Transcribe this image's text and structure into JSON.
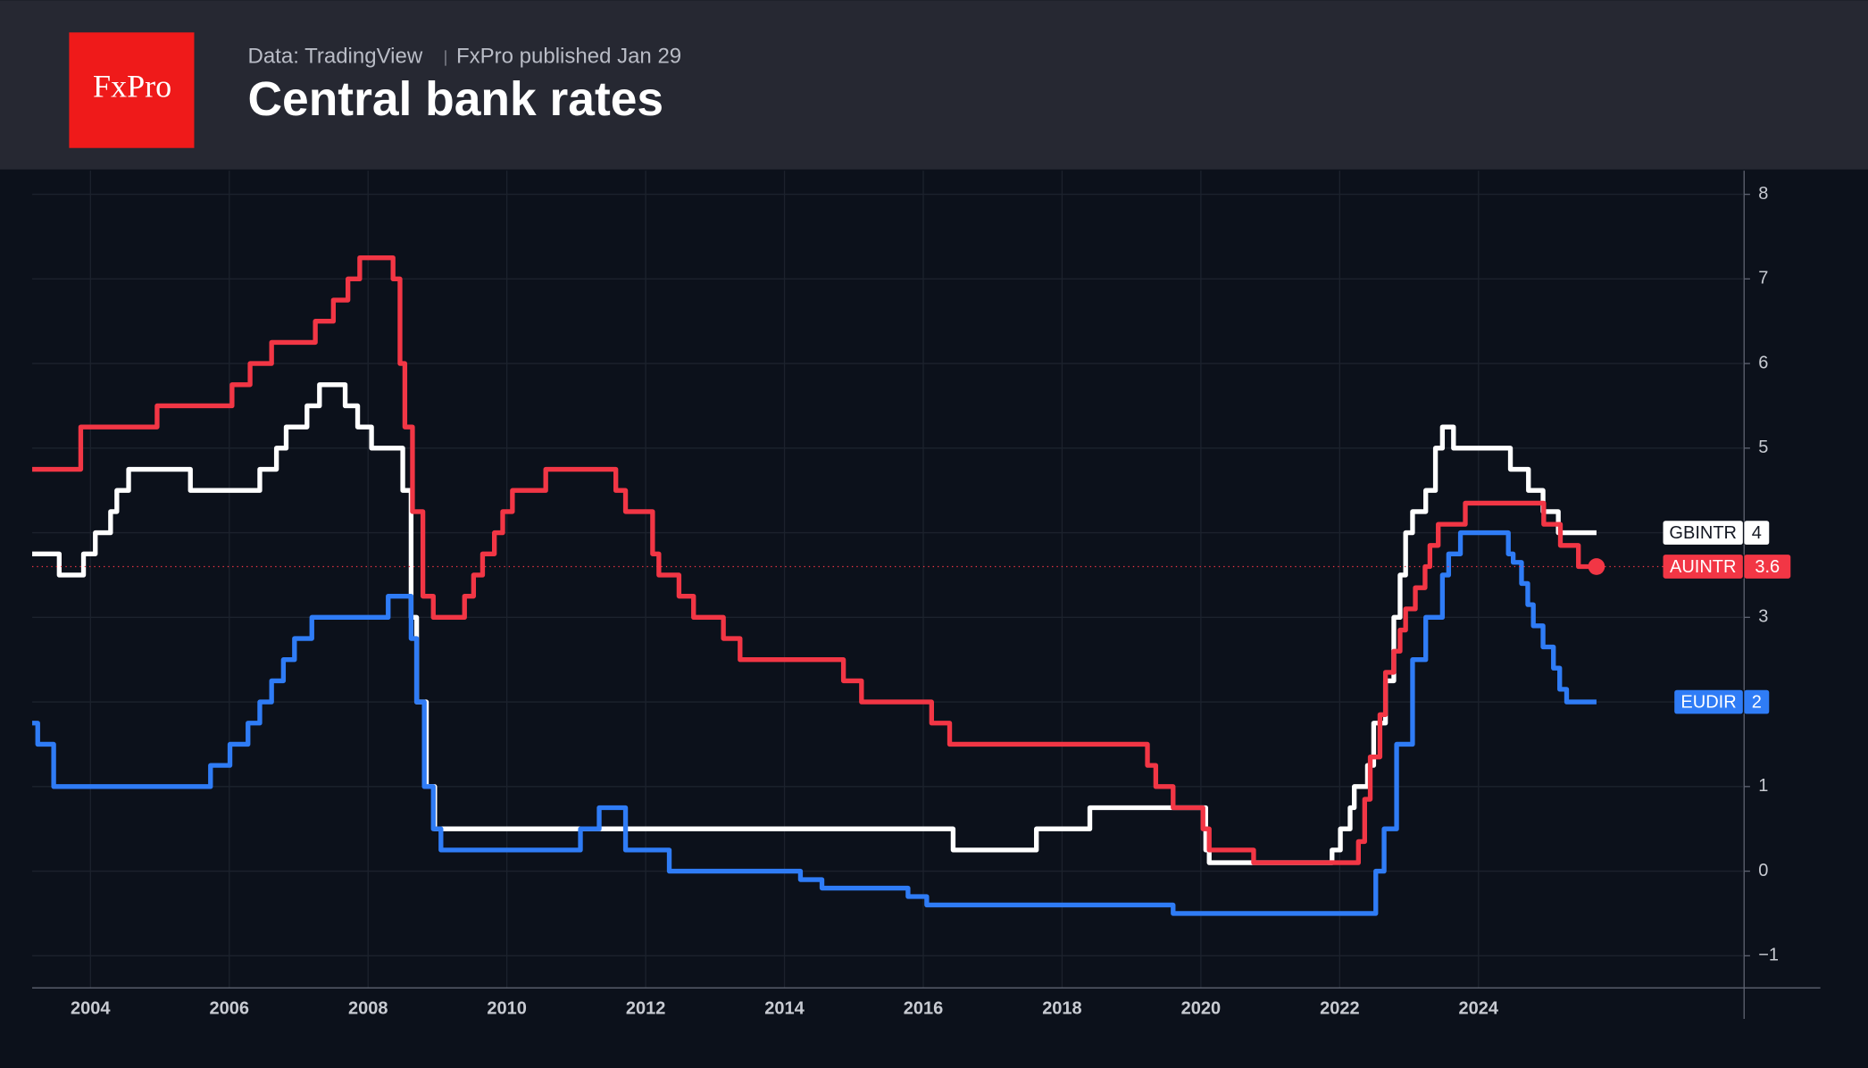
{
  "chart_data": {
    "type": "line",
    "brand": "FxPro",
    "source": "Data: TradingView",
    "publisher": "FxPro published Jan 29",
    "title": "Central bank rates",
    "step": "after",
    "grid": true,
    "xlim": [
      2003.16,
      2027.81
    ],
    "xticks": [
      2004,
      2006,
      2008,
      2010,
      2012,
      2014,
      2016,
      2018,
      2020,
      2022,
      2024
    ],
    "ylim": [
      -1.38,
      8.28
    ],
    "yticks": [
      8,
      7,
      6,
      5,
      4,
      3,
      2,
      1,
      0,
      {
        "value": -1,
        "label": "−1"
      }
    ],
    "reference_series": 1,
    "series": [
      {
        "name": "GBINTR",
        "color": "#ffffff",
        "label_text_color": "#131722",
        "x": [
          2003.16,
          2003.55,
          2003.9,
          2004.07,
          2004.29,
          2004.38,
          2004.55,
          2005.44,
          2006.44,
          2006.68,
          2006.82,
          2007.12,
          2007.3,
          2007.67,
          2007.85,
          2008.05,
          2008.5,
          2008.62,
          2008.7,
          2008.84,
          2008.96,
          2016.43,
          2017.63,
          2018.4,
          2020.07,
          2020.12,
          2021.89,
          2022.01,
          2022.15,
          2022.21,
          2022.4,
          2022.49,
          2022.66,
          2022.78,
          2022.87,
          2022.95,
          2023.05,
          2023.24,
          2023.38,
          2023.48,
          2023.64,
          2024.46,
          2024.72,
          2024.93,
          2025.15,
          2025.41,
          2025.7
        ],
        "values": [
          3.75,
          3.5,
          3.75,
          4,
          4.25,
          4.5,
          4.75,
          4.5,
          4.75,
          5,
          5.25,
          5.5,
          5.75,
          5.5,
          5.25,
          5,
          4.5,
          3,
          2,
          1,
          0.5,
          0.25,
          0.5,
          0.75,
          0.25,
          0.1,
          0.25,
          0.5,
          0.75,
          1,
          1.25,
          1.75,
          2.25,
          3,
          3.5,
          4,
          4.25,
          4.5,
          5,
          5.25,
          5,
          4.75,
          4.5,
          4.25,
          4,
          4,
          4
        ]
      },
      {
        "name": "AUINTR",
        "color": "#f23645",
        "label_text_color": "#ffffff",
        "x": [
          2003.16,
          2003.86,
          2004.96,
          2006.04,
          2006.3,
          2006.61,
          2007.24,
          2007.5,
          2007.71,
          2007.88,
          2008.36,
          2008.46,
          2008.53,
          2008.64,
          2008.79,
          2008.94,
          2009.39,
          2009.52,
          2009.65,
          2009.82,
          2009.94,
          2010.08,
          2010.56,
          2011.57,
          2011.71,
          2012.1,
          2012.19,
          2012.48,
          2012.69,
          2013.12,
          2013.36,
          2014.85,
          2015.11,
          2016.12,
          2016.38,
          2019.23,
          2019.35,
          2019.6,
          2020.03,
          2020.12,
          2020.76,
          2022.27,
          2022.36,
          2022.44,
          2022.58,
          2022.66,
          2022.78,
          2022.87,
          2022.95,
          2023.09,
          2023.23,
          2023.3,
          2023.42,
          2023.81,
          2024.94,
          2025.18,
          2025.44,
          2025.7
        ],
        "values": [
          4.75,
          5.25,
          5.5,
          5.75,
          6,
          6.25,
          6.5,
          6.75,
          7,
          7.25,
          7,
          6,
          5.25,
          4.25,
          3.25,
          3,
          3.25,
          3.5,
          3.75,
          4,
          4.25,
          4.5,
          4.75,
          4.5,
          4.25,
          3.75,
          3.5,
          3.25,
          3,
          2.75,
          2.5,
          2.25,
          2,
          1.75,
          1.5,
          1.25,
          1,
          0.75,
          0.5,
          0.25,
          0.1,
          0.35,
          0.85,
          1.35,
          1.85,
          2.35,
          2.6,
          2.85,
          3.1,
          3.35,
          3.6,
          3.85,
          4.1,
          4.35,
          4.1,
          3.85,
          3.6,
          3.6
        ]
      },
      {
        "name": "EUDIR",
        "color": "#2f7cf6",
        "label_text_color": "#ffffff",
        "x": [
          2003.16,
          2003.24,
          2003.47,
          2005.73,
          2006.01,
          2006.27,
          2006.44,
          2006.61,
          2006.78,
          2006.94,
          2007.19,
          2008.29,
          2008.62,
          2008.7,
          2008.81,
          2008.94,
          2009.05,
          2011.06,
          2011.33,
          2011.71,
          2012.34,
          2014.23,
          2014.54,
          2015.78,
          2016.05,
          2019.6,
          2022.52,
          2022.64,
          2022.82,
          2023.05,
          2023.24,
          2023.48,
          2023.57,
          2023.74,
          2024.43,
          2024.5,
          2024.62,
          2024.71,
          2024.79,
          2024.93,
          2025.08,
          2025.17,
          2025.27,
          2025.7
        ],
        "values": [
          1.75,
          1.5,
          1,
          1.25,
          1.5,
          1.75,
          2,
          2.25,
          2.5,
          2.75,
          3,
          3.25,
          2.75,
          2,
          1,
          0.5,
          0.25,
          0.5,
          0.75,
          0.25,
          0,
          -0.1,
          -0.2,
          -0.3,
          -0.4,
          -0.5,
          0,
          0.5,
          1.5,
          2.5,
          3,
          3.5,
          3.75,
          4,
          3.75,
          3.65,
          3.4,
          3.15,
          2.9,
          2.65,
          2.4,
          2.15,
          2,
          2
        ]
      }
    ]
  }
}
